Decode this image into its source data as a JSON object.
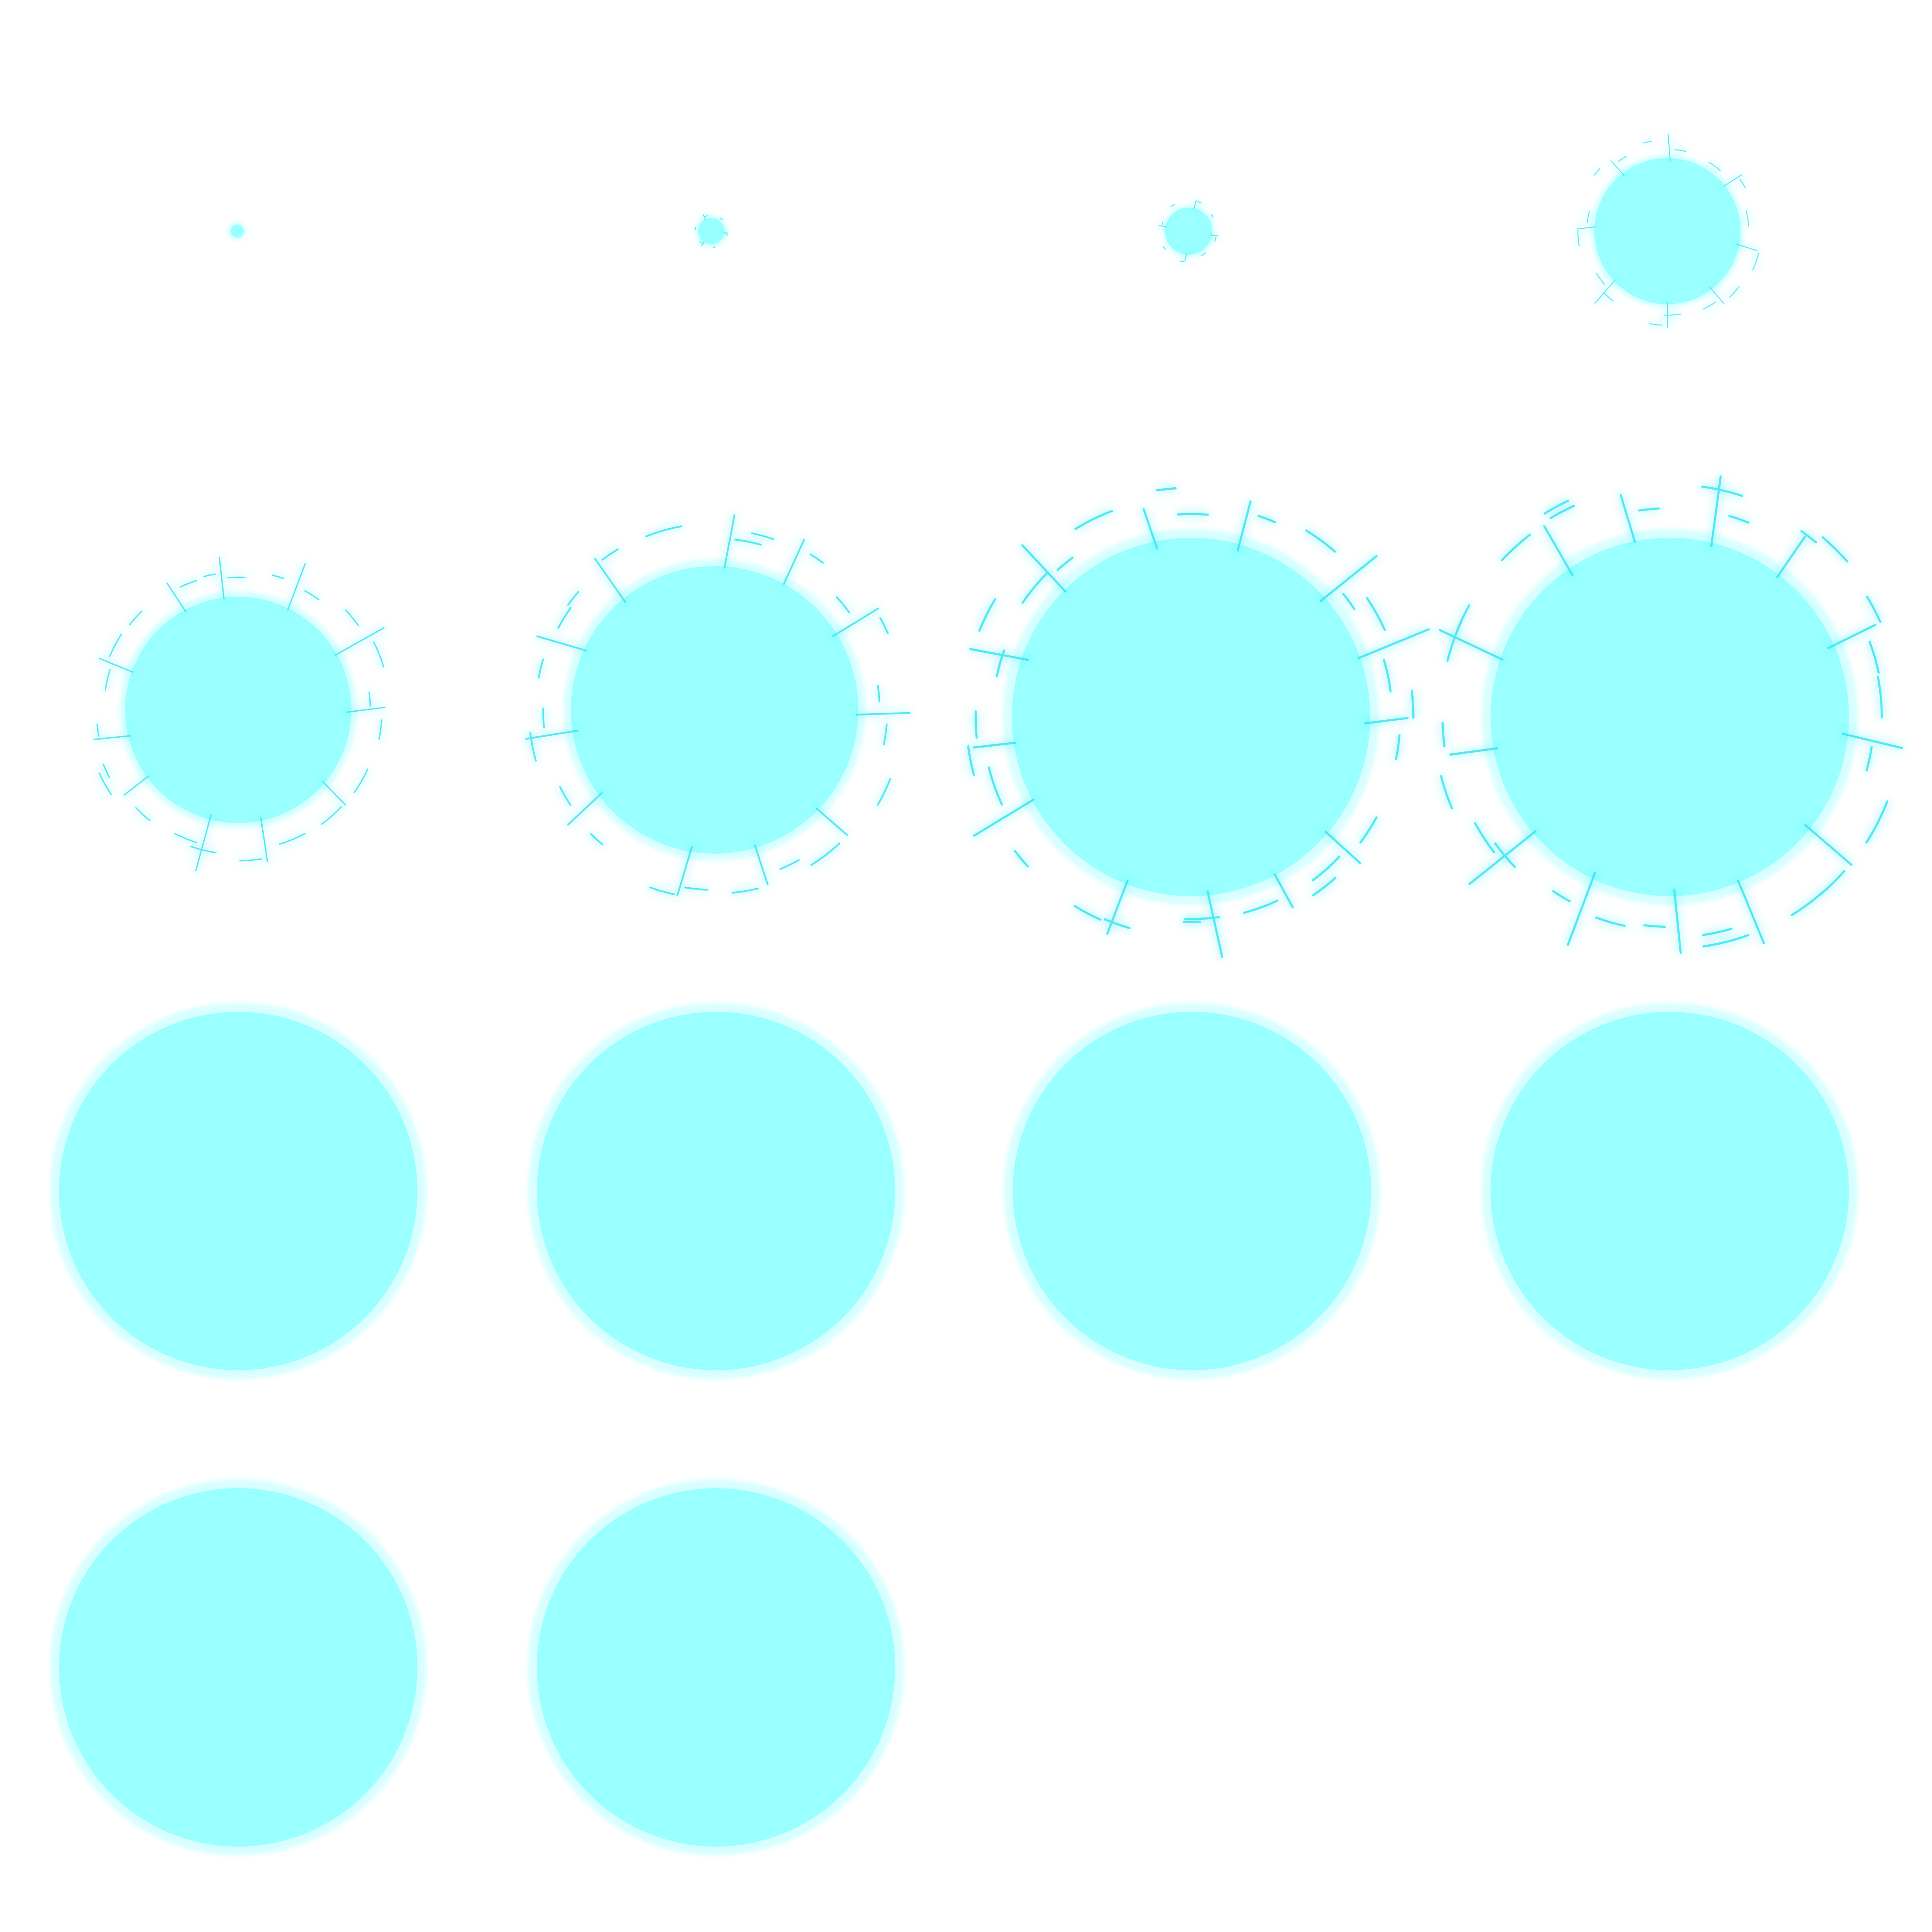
{
  "sprite_sheet": {
    "columns": 4,
    "frame_count": 14,
    "colors": {
      "background": "#ffffff",
      "orb_fill": "#99ffff",
      "orb_glow": "#b8ffff",
      "spark": "#33e6f2"
    },
    "frames": [
      {
        "index": 1,
        "phase": "charge"
      },
      {
        "index": 2,
        "phase": "charge"
      },
      {
        "index": 3,
        "phase": "charge"
      },
      {
        "index": 4,
        "phase": "charge"
      },
      {
        "index": 5,
        "phase": "crackle"
      },
      {
        "index": 6,
        "phase": "crackle"
      },
      {
        "index": 7,
        "phase": "crackle"
      },
      {
        "index": 8,
        "phase": "crackle"
      },
      {
        "index": 9,
        "phase": "hold"
      },
      {
        "index": 10,
        "phase": "hold"
      },
      {
        "index": 11,
        "phase": "hold"
      },
      {
        "index": 12,
        "phase": "hold"
      },
      {
        "index": 13,
        "phase": "hold"
      },
      {
        "index": 14,
        "phase": "hold"
      }
    ]
  }
}
